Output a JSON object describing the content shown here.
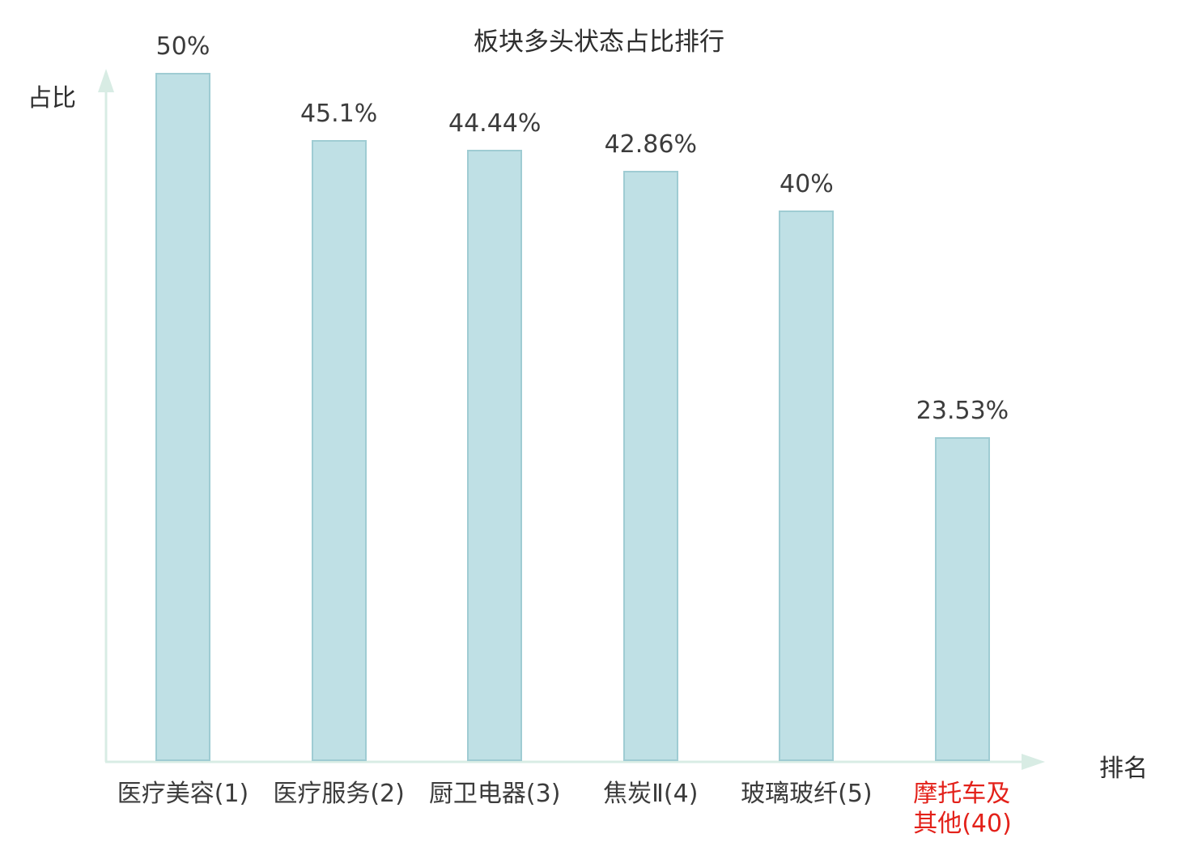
{
  "chart_data": {
    "type": "bar",
    "title": "板块多头状态占比排行",
    "xlabel": "排名",
    "ylabel": "占比",
    "categories": [
      "医疗美容(1)",
      "医疗服务(2)",
      "厨卫电器(3)",
      "焦炭Ⅱ(4)",
      "玻璃玻纤(5)",
      "摩托车及\n其他(40)"
    ],
    "values": [
      50,
      45.1,
      44.44,
      42.86,
      40,
      23.53
    ],
    "value_labels": [
      "50%",
      "45.1%",
      "44.44%",
      "42.86%",
      "40%",
      "23.53%"
    ],
    "highlight_index": 5,
    "ylim": [
      0,
      50
    ],
    "legend": "none",
    "grid": false,
    "colors": {
      "bar_fill": "#bfe0e5",
      "bar_border": "#9fccd3",
      "axis": "#d8ece4",
      "text": "#3c3c3c",
      "highlight": "#e3211a"
    }
  }
}
